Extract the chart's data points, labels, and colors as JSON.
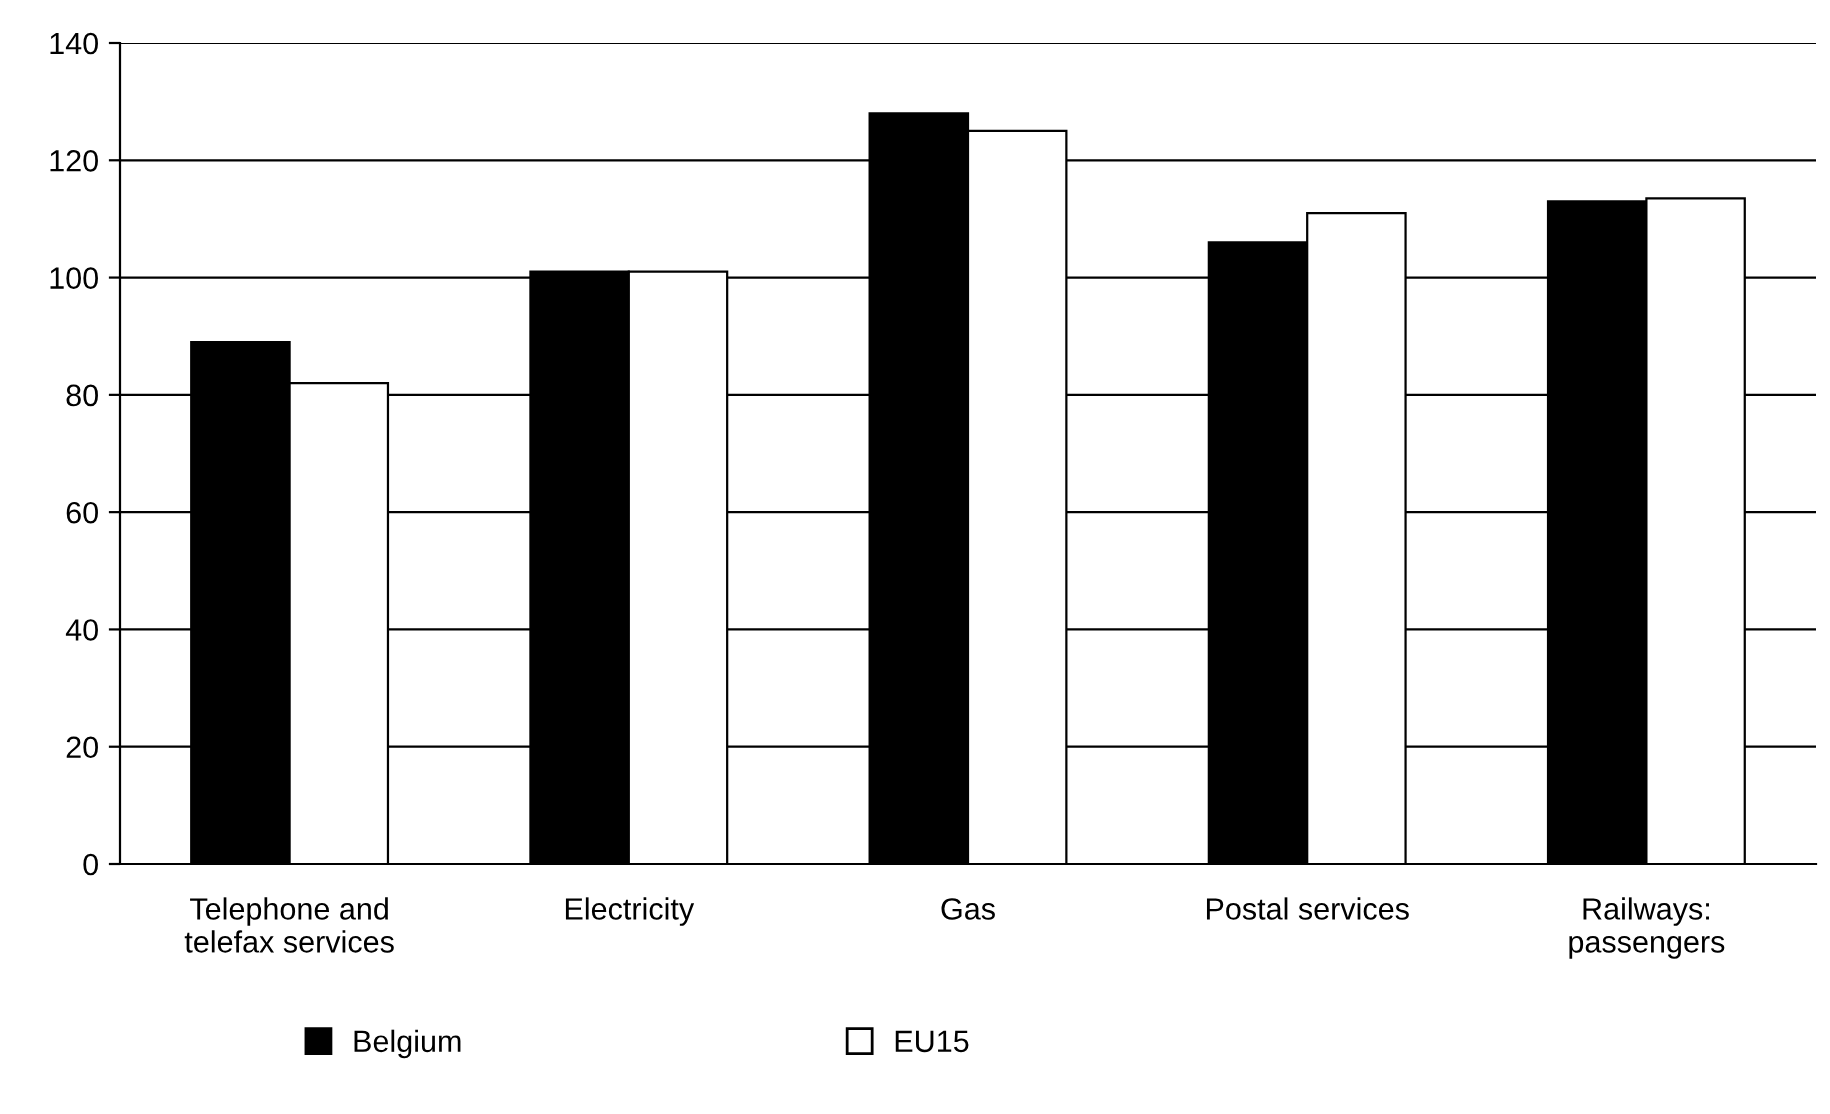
{
  "chart_data": {
    "type": "bar",
    "categories": [
      "Telephone and\ntelefax services",
      "Electricity",
      "Gas",
      "Postal services",
      "Railways:\npassengers"
    ],
    "series": [
      {
        "name": "Belgium",
        "color": "#000000",
        "values": [
          89,
          101,
          128,
          106,
          113
        ]
      },
      {
        "name": "EU15",
        "color": "#ffffff",
        "values": [
          82,
          101,
          125,
          111,
          113.5
        ]
      }
    ],
    "ylim": [
      0,
      140
    ],
    "yticks": [
      0,
      20,
      40,
      60,
      80,
      100,
      120,
      140
    ],
    "grid": "y",
    "legend": "bottom"
  }
}
